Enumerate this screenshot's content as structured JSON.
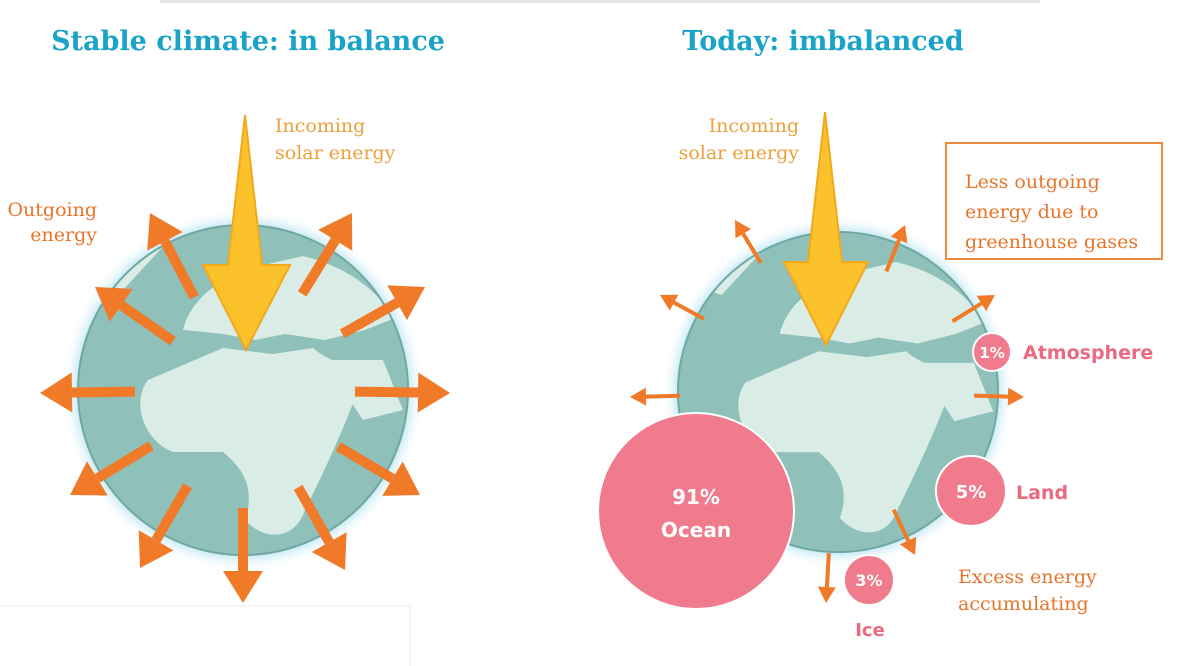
{
  "left_panel": {
    "title": "Stable climate: in balance",
    "incoming_label": [
      "Incoming",
      "solar energy"
    ],
    "outgoing_label": [
      "Outgoing",
      "energy"
    ]
  },
  "right_panel": {
    "title": "Today: imbalanced",
    "incoming_label": [
      "Incoming",
      "solar energy"
    ],
    "callout": [
      "Less outgoing",
      "energy due to",
      "greenhouse gases"
    ],
    "excess_label": [
      "Excess energy",
      "accumulating"
    ],
    "reservoirs": [
      {
        "share": "91%",
        "name": "Ocean"
      },
      {
        "share": "5%",
        "name": "Land"
      },
      {
        "share": "3%",
        "name": "Ice"
      },
      {
        "share": "1%",
        "name": "Atmosphere"
      }
    ]
  }
}
